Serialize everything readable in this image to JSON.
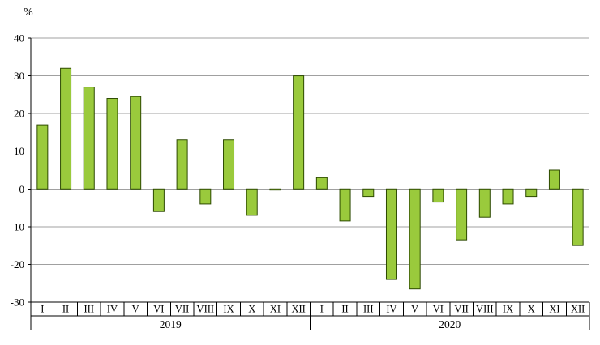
{
  "chart_data": {
    "type": "bar",
    "title": "",
    "ylabel": "%",
    "xlabel": "",
    "ylim": [
      -30,
      40
    ],
    "ytick_step": 10,
    "grid": "horizontal",
    "legend": "none",
    "bar_color": "#9aca3c",
    "bar_border": "#2d4a00",
    "grid_color": "#a0a0a0",
    "axis_color": "#000000",
    "groups": [
      {
        "year": "2019",
        "categories": [
          "I",
          "II",
          "III",
          "IV",
          "V",
          "VI",
          "VII",
          "VIII",
          "IX",
          "X",
          "XI",
          "XII"
        ],
        "values": [
          17,
          32,
          27,
          24,
          24.5,
          -6,
          13,
          -4,
          13,
          -7,
          -0.3,
          30
        ]
      },
      {
        "year": "2020",
        "categories": [
          "I",
          "II",
          "III",
          "IV",
          "V",
          "VI",
          "VII",
          "VIII",
          "IX",
          "X",
          "XI",
          "XII"
        ],
        "values": [
          3,
          -8.5,
          -2,
          -24,
          -26.5,
          -3.5,
          -13.5,
          -7.5,
          -4,
          -2,
          5,
          -15
        ]
      }
    ]
  }
}
